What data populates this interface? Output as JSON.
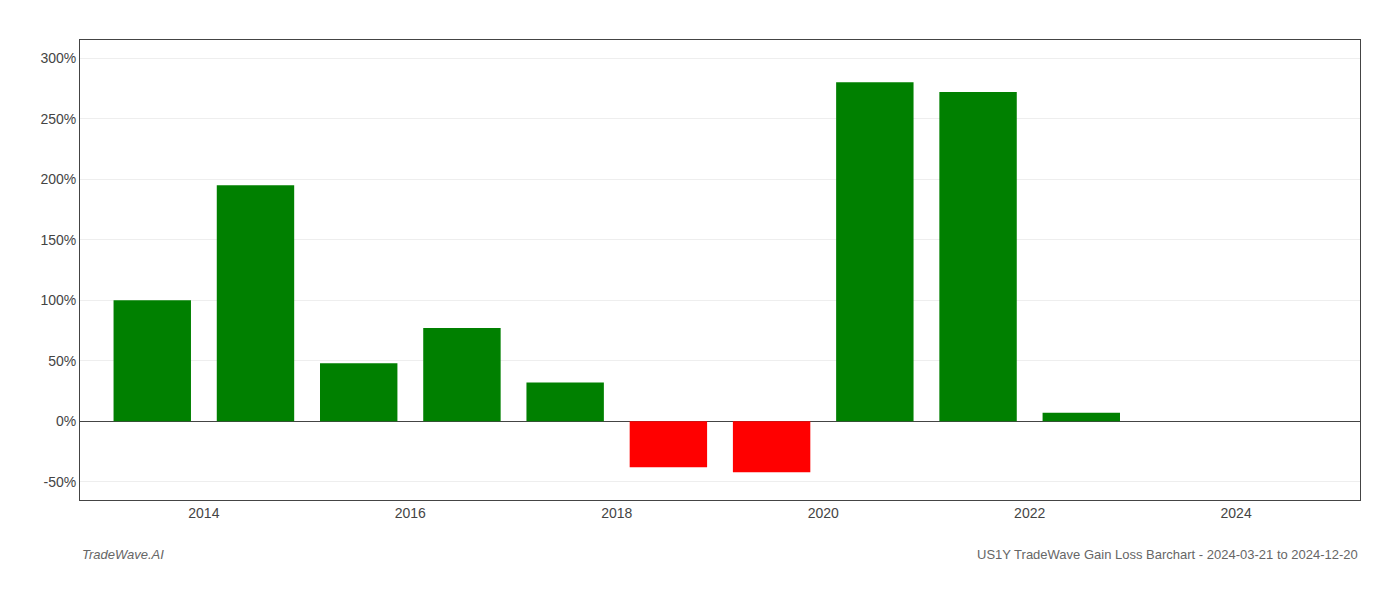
{
  "chart_data": {
    "type": "bar",
    "x": [
      2013.5,
      2014.5,
      2015.5,
      2016.5,
      2017.5,
      2018.5,
      2019.5,
      2020.5,
      2021.5,
      2022.5,
      2023.5
    ],
    "values": [
      100,
      195,
      48,
      77,
      32,
      -38,
      -42,
      280,
      272,
      7,
      0
    ],
    "colors": [
      "#008000",
      "#008000",
      "#008000",
      "#008000",
      "#008000",
      "#ff0000",
      "#ff0000",
      "#008000",
      "#008000",
      "#008000",
      "#008000"
    ],
    "xlim": [
      2012.8,
      2025.2
    ],
    "xticks": [
      2014,
      2016,
      2018,
      2020,
      2022,
      2024
    ],
    "ylim": [
      -65,
      315
    ],
    "yticks": [
      {
        "value": -50,
        "label": "-50%"
      },
      {
        "value": 0,
        "label": "0%"
      },
      {
        "value": 50,
        "label": "50%"
      },
      {
        "value": 100,
        "label": "100%"
      },
      {
        "value": 150,
        "label": "150%"
      },
      {
        "value": 200,
        "label": "200%"
      },
      {
        "value": 250,
        "label": "250%"
      },
      {
        "value": 300,
        "label": "300%"
      }
    ],
    "grid": true,
    "annotations": [
      "TradeWave.AI",
      "US1Y TradeWave Gain Loss Barchart - 2024-03-21 to 2024-12-20"
    ]
  }
}
